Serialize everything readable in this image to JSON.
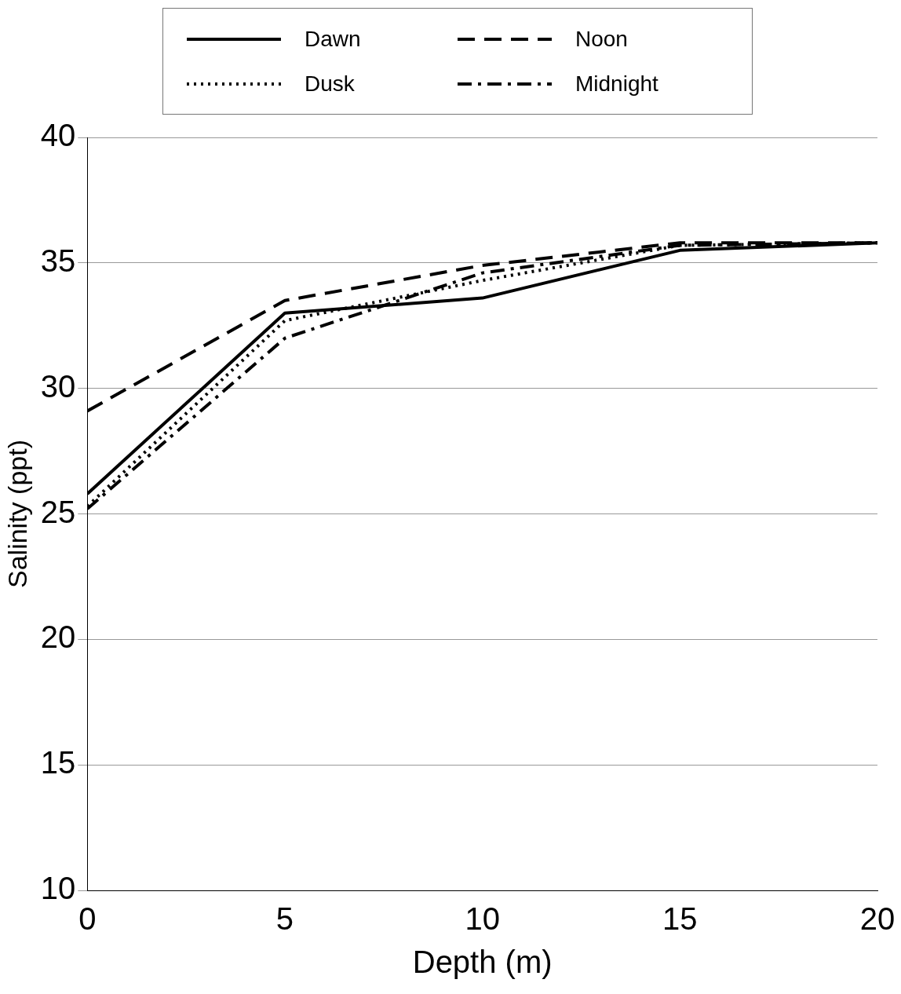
{
  "chart_data": {
    "type": "line",
    "xlabel": "Depth (m)",
    "ylabel": "Salinity (ppt)",
    "x": [
      0,
      5,
      10,
      15,
      20
    ],
    "series": [
      {
        "name": "Dawn",
        "color": "#000000",
        "line_style": "solid",
        "values": [
          25.8,
          33.0,
          33.6,
          35.5,
          35.8
        ]
      },
      {
        "name": "Noon",
        "color": "#000000",
        "line_style": "dashed",
        "values": [
          29.1,
          33.5,
          34.9,
          35.8,
          35.8
        ]
      },
      {
        "name": "Dusk",
        "color": "#000000",
        "line_style": "dotted",
        "values": [
          25.3,
          32.7,
          34.3,
          35.7,
          35.8
        ]
      },
      {
        "name": "Midnight",
        "color": "#000000",
        "line_style": "dashdot",
        "values": [
          25.2,
          32.0,
          34.6,
          35.7,
          35.8
        ]
      }
    ],
    "xlim": [
      0,
      20
    ],
    "xticks": [
      0,
      5,
      10,
      15,
      20
    ],
    "ylim": [
      10,
      40
    ],
    "yticks": [
      10,
      15,
      20,
      25,
      30,
      35,
      40
    ],
    "grid": "y",
    "legend": "top",
    "marker": "none"
  }
}
